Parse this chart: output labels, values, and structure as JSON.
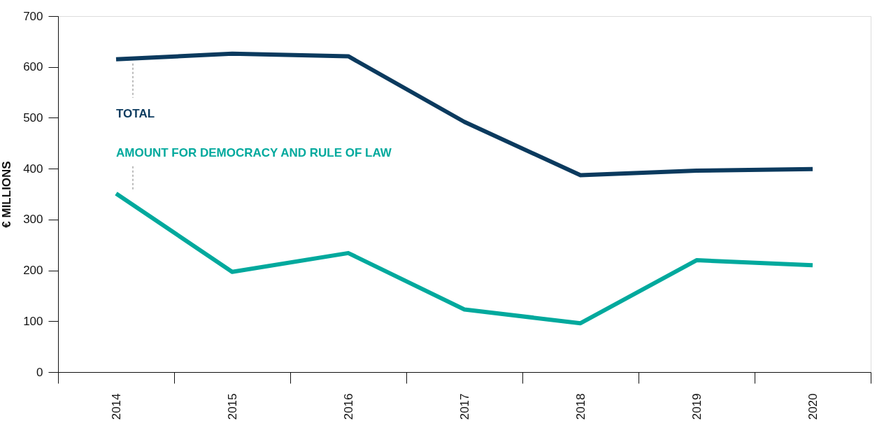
{
  "chart_data": {
    "type": "line",
    "ylabel": "€ MILLIONS",
    "categories": [
      "2014",
      "2015",
      "2016",
      "2017",
      "2018",
      "2019",
      "2020"
    ],
    "series": [
      {
        "name": "TOTAL",
        "color": "#0b3a5e",
        "values": [
          615,
          626,
          621,
          492,
          387,
          396,
          399
        ]
      },
      {
        "name": "AMOUNT FOR DEMOCRACY AND RULE OF LAW",
        "color": "#00a99d",
        "values": [
          351,
          197,
          234,
          123,
          96,
          220,
          210
        ]
      }
    ],
    "ylim": [
      0,
      700
    ],
    "yticks": [
      0,
      100,
      200,
      300,
      400,
      500,
      600,
      700
    ],
    "grid": false,
    "marker": "none",
    "line_style": "solid"
  }
}
